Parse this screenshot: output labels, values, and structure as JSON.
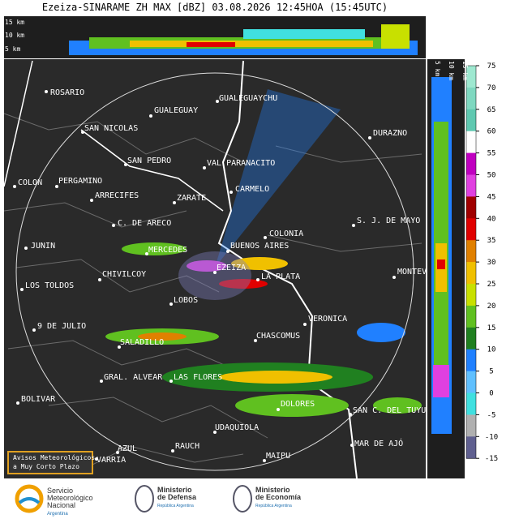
{
  "title": "Ezeiza-SINARAME ZH MAX [dBZ] 03.08.2026 12:45HOA (15:45UTC)",
  "top_panel_labels": [
    "15 km",
    "10 km",
    "5 km"
  ],
  "side_panel_labels": [
    "5 km",
    "10 km",
    "15 km"
  ],
  "cities": [
    "ROSARIO",
    "GUALEGUAY",
    "GUALEGUAYCHU",
    "SAN NICOLAS",
    "DURAZNO",
    "SAN PEDRO",
    "VAL PARANACITO",
    "COLON",
    "PERGAMINO",
    "ARRECIFES",
    "ZARATE",
    "CARMELO",
    "C. DE ARECO",
    "S. J. DE MAYO",
    "COLONIA",
    "BUENOS AIRES",
    "JUNIN",
    "MERCEDES",
    "MONTEV",
    "CHIVILCOY",
    "EZEIZA",
    "LA PLATA",
    "LOS TOLDOS",
    "LOBOS",
    "VERONICA",
    "9 DE JULIO",
    "CHASCOMUS",
    "SALADILLO",
    "GRAL. ALVEAR",
    "LAS FLORES",
    "BOLIVAR",
    "DOLORES",
    "SAN C. DEL TUYU",
    "UDAQUIOLA",
    "MAR DE AJÓ",
    "AZUL",
    "RAUCH",
    "VARRIA",
    "MAIPU"
  ],
  "colorbar": {
    "ticks": [
      75,
      70,
      65,
      60,
      55,
      50,
      45,
      40,
      35,
      30,
      25,
      20,
      15,
      10,
      5,
      0,
      -5,
      -10,
      -15
    ],
    "colors": [
      "#9ee8d0",
      "#7fd8c0",
      "#5fc8b0",
      "#ffffff",
      "#c000c0",
      "#e040e0",
      "#a00000",
      "#e00000",
      "#e08000",
      "#f0c000",
      "#c8e000",
      "#60c020",
      "#208020",
      "#2080ff",
      "#60c0ff",
      "#40e0e0",
      "#b0b0b0",
      "#606090"
    ]
  },
  "notice": [
    "Avisos Meteorológicos",
    "a Muy Corto Plazo"
  ],
  "logos": [
    [
      "Servicio",
      "Meteorológico",
      "Nacional",
      "Argentina"
    ],
    [
      "Ministerio",
      "de Defensa",
      "República Argentina"
    ],
    [
      "Ministerio",
      "de Economía",
      "República Argentina"
    ]
  ]
}
